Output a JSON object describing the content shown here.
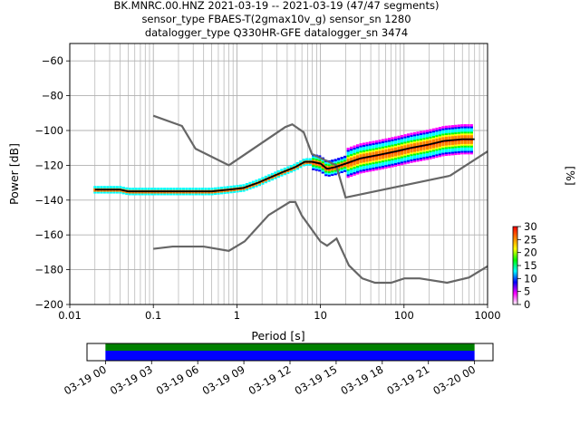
{
  "chart_data": [
    {
      "type": "heatmap",
      "title_lines": [
        "BK.MNRC.00.HNZ   2021-03-19 -- 2021-03-19  (47/47 segments)",
        "sensor_type FBAES-T(2gmax10v_g) sensor_sn 1280",
        "datalogger_type Q330HR-GFE datalogger_sn 3474"
      ],
      "xlabel": "Period [s]",
      "ylabel": "Power [dB]",
      "xscale": "log",
      "xlim": [
        0.01,
        1000
      ],
      "ylim": [
        -200,
        -50
      ],
      "x_ticks": [
        0.01,
        0.1,
        1,
        10,
        100,
        1000
      ],
      "x_tick_labels": [
        "0.01",
        "0.1",
        "1",
        "10",
        "100",
        "1000"
      ],
      "y_ticks": [
        -200,
        -180,
        -160,
        -140,
        -120,
        -100,
        -80,
        -60
      ],
      "y_tick_labels": [
        "−200",
        "−180",
        "−160",
        "−140",
        "−120",
        "−100",
        "−80",
        "−60"
      ],
      "grid": true,
      "colorbar": {
        "label": "[%]",
        "min": 0,
        "max": 30,
        "ticks": [
          0,
          5,
          10,
          15,
          20,
          25,
          30
        ],
        "tick_labels": [
          "0",
          "5",
          "10",
          "15",
          "20",
          "25",
          "30"
        ],
        "colors": [
          "#ffffff",
          "#ff00ff",
          "#0000ff",
          "#00ffff",
          "#00ff00",
          "#ffff00",
          "#ff8000",
          "#ff0000"
        ]
      },
      "noise_models": [
        {
          "name": "high",
          "x": [
            0.1,
            0.22,
            0.32,
            0.8,
            3.8,
            4.6,
            6.3,
            7.9,
            15.4,
            20,
            354.8
          ],
          "y": [
            -91.5,
            -97.4,
            -110.5,
            -120,
            -98,
            -96.5,
            -101,
            -113.5,
            -120,
            -138.5,
            -126
          ],
          "extra": {
            "x": [
              354.8,
              1000
            ],
            "y": [
              -126,
              -112
            ]
          },
          "color": "#666666"
        },
        {
          "name": "low",
          "x": [
            0.1,
            0.17,
            0.4,
            0.8,
            1.24,
            2.4,
            4.3,
            5.0,
            6.0,
            10,
            12,
            15.6,
            21.9,
            31.6,
            45,
            70,
            101,
            154,
            328,
            600,
            1000
          ],
          "y": [
            -168,
            -166.7,
            -166.7,
            -169.2,
            -163.7,
            -148.6,
            -141.1,
            -141.1,
            -149,
            -163.8,
            -166.2,
            -162.1,
            -177.5,
            -185,
            -187.5,
            -187.5,
            -185,
            -185,
            -187.5,
            -184.5,
            -178
          ]
        }
      ],
      "median": {
        "x": [
          0.02,
          0.03,
          0.04,
          0.05,
          0.07,
          0.1,
          0.15,
          0.2,
          0.3,
          0.5,
          0.8,
          1.2,
          1.8,
          2.5,
          3.5,
          5,
          6.5,
          8,
          10,
          12,
          15,
          20,
          30,
          50,
          80,
          120,
          200,
          300,
          500,
          700
        ],
        "y": [
          -134,
          -134,
          -134,
          -135,
          -135,
          -135,
          -135,
          -135,
          -135,
          -135,
          -134,
          -133,
          -130,
          -127,
          -124,
          -121,
          -118,
          -118,
          -119,
          -122,
          -121,
          -119,
          -116,
          -114,
          -112,
          -110,
          -108,
          -106,
          -105,
          -105
        ]
      },
      "median_color": "#000000",
      "time_axis": {
        "tick_labels": [
          "03-19 00",
          "03-19 03",
          "03-19 06",
          "03-19 09",
          "03-19 12",
          "03-19 15",
          "03-19 18",
          "03-19 21",
          "03-20 00"
        ],
        "hours": [
          0,
          3,
          6,
          9,
          12,
          15,
          18,
          21,
          24
        ],
        "range_hours": [
          -1.2,
          25.2
        ],
        "coverage_hours": [
          0,
          24
        ],
        "data_color": "#0000ff",
        "gap_free_color": "#008000"
      }
    }
  ]
}
